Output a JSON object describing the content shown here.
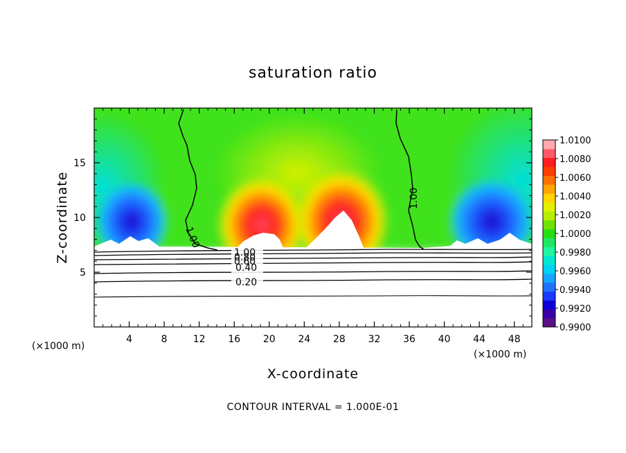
{
  "chart_data": {
    "type": "heatmap",
    "title": "saturation ratio",
    "xlabel": "X-coordinate",
    "ylabel": "Z-coordinate",
    "x_unit_left": "(×1000 m)",
    "x_unit_right": "(×1000 m)",
    "footer": "CONTOUR INTERVAL = 1.000E-01",
    "xlim": [
      0,
      50
    ],
    "ylim": [
      0,
      20
    ],
    "x_ticks": [
      4,
      8,
      12,
      16,
      20,
      24,
      28,
      32,
      36,
      40,
      44,
      48
    ],
    "x_tick_labels": [
      "4",
      "8",
      "12",
      "16",
      "20",
      "24",
      "28",
      "32",
      "36",
      "40",
      "44",
      "48"
    ],
    "y_ticks": [
      5,
      10,
      15
    ],
    "y_tick_labels": [
      "5",
      "10",
      "15"
    ],
    "colorbar": {
      "min": 0.99,
      "max": 1.01,
      "step": 0.001,
      "labels": [
        "1.0100",
        "1.0080",
        "1.0060",
        "1.0040",
        "1.0020",
        "1.0000",
        "0.9980",
        "0.9960",
        "0.9940",
        "0.9920",
        "0.9900"
      ],
      "colors": [
        "#5a1187",
        "#3a00a8",
        "#0d00d6",
        "#1c39ff",
        "#1f73ff",
        "#17a6ff",
        "#00d2f2",
        "#00e8d0",
        "#21f6a0",
        "#1fe860",
        "#26df12",
        "#6fe200",
        "#b6ee00",
        "#e4f000",
        "#ffd400",
        "#ffa400",
        "#ff7000",
        "#ff3f00",
        "#ff1d1d",
        "#ff5a66",
        "#ffa8ae"
      ]
    },
    "contour_labels": [
      "1.00",
      "1.00",
      "1.00",
      "0.80",
      "0.60",
      "0.40",
      "0.20"
    ],
    "field_description": "Shaded saturation ratio above ~7 km; white below cloud base with line contours 0.20–1.00 at interval 0.1",
    "shaded_features": [
      {
        "x": 5,
        "z": 10,
        "value": 0.9915
      },
      {
        "x": 46,
        "z": 10,
        "value": 0.9915
      },
      {
        "x": 18,
        "z": 10,
        "value": 1.0085
      },
      {
        "x": 29,
        "z": 10,
        "value": 1.0085
      },
      {
        "x": 23.5,
        "z": 16,
        "value": 1.0008
      },
      {
        "x": 1,
        "z": 14,
        "value": 0.9968
      },
      {
        "x": 49,
        "z": 14,
        "value": 0.9965
      }
    ]
  }
}
